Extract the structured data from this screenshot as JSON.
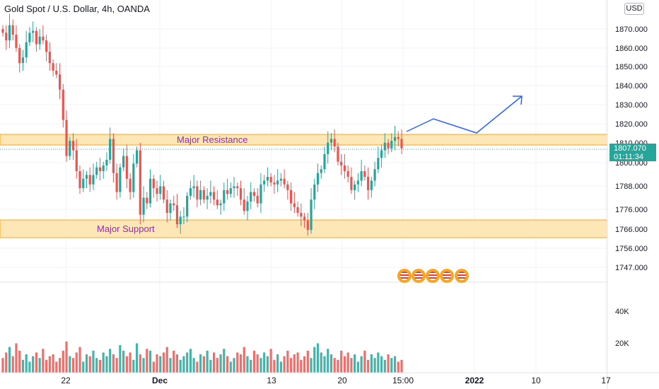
{
  "header": {
    "title": "Gold Spot / U.S. Dollar, 4h, OANDA",
    "currency_button": "USD"
  },
  "price_tag": {
    "price": "1807.070",
    "countdown": "01:11:34"
  },
  "zones": {
    "resistance_label": "Major Resistance",
    "support_label": "Major Support"
  },
  "colors": {
    "up": "#26a69a",
    "down": "#ef5350",
    "volume_up": "#26a69a",
    "volume_down": "#ef5350",
    "zone": "#fbe1a6",
    "label": "#9c27b0",
    "arrow": "#2962ff"
  },
  "chart_data": {
    "type": "candlestick",
    "title": "Gold Spot / U.S. Dollar, 4h, OANDA",
    "ylim": [
      1747,
      1874
    ],
    "yticks": [
      "1870.000",
      "1860.000",
      "1850.000",
      "1840.000",
      "1830.000",
      "1820.000",
      "1810.000",
      "1800.000",
      "1788.000",
      "1776.000",
      "1766.000",
      "1756.000",
      "1747.000"
    ],
    "volume_ticks": [
      "40K",
      "20K"
    ],
    "xticks": [
      "22",
      "Dec",
      "13",
      "20",
      "15:00",
      "2022",
      "10",
      "17"
    ],
    "resistance_zone": [
      1809,
      1815
    ],
    "support_zone": [
      1761,
      1770
    ],
    "current_price": 1807.07,
    "waypoints_price": [
      1815,
      1823,
      1815,
      1836
    ],
    "closes": [
      1868,
      1864,
      1872,
      1867,
      1860,
      1852,
      1855,
      1863,
      1868,
      1869,
      1862,
      1866,
      1864,
      1858,
      1852,
      1848,
      1846,
      1838,
      1822,
      1803,
      1811,
      1806,
      1795,
      1786,
      1791,
      1793,
      1788,
      1793,
      1797,
      1795,
      1798,
      1801,
      1812,
      1794,
      1784,
      1797,
      1803,
      1791,
      1784,
      1799,
      1806,
      1772,
      1781,
      1778,
      1791,
      1786,
      1783,
      1787,
      1780,
      1773,
      1778,
      1777,
      1767,
      1771,
      1771,
      1782,
      1786,
      1787,
      1780,
      1785,
      1780,
      1782,
      1784,
      1780,
      1777,
      1778,
      1785,
      1783,
      1786,
      1787,
      1786,
      1780,
      1774,
      1779,
      1784,
      1782,
      1778,
      1788,
      1790,
      1792,
      1789,
      1788,
      1790,
      1791,
      1788,
      1785,
      1778,
      1776,
      1773,
      1771,
      1769,
      1764,
      1780,
      1788,
      1794,
      1796,
      1804,
      1810,
      1812,
      1808,
      1800,
      1798,
      1795,
      1792,
      1785,
      1788,
      1790,
      1795,
      1792,
      1785,
      1790,
      1796,
      1802,
      1806,
      1810,
      1807,
      1811,
      1813,
      1812,
      1807
    ],
    "volumes": [
      8,
      11,
      14,
      9,
      16,
      12,
      7,
      10,
      6,
      9,
      11,
      8,
      13,
      7,
      9,
      10,
      6,
      8,
      12,
      17,
      9,
      8,
      11,
      14,
      6,
      10,
      9,
      12,
      8,
      7,
      11,
      9,
      13,
      10,
      8,
      15,
      12,
      9,
      11,
      7,
      16,
      10,
      8,
      13,
      12,
      6,
      10,
      9,
      11,
      14,
      8,
      12,
      10,
      7,
      9,
      11,
      13,
      8,
      6,
      10,
      9,
      12,
      7,
      11,
      8,
      10,
      13,
      9,
      6,
      8,
      11,
      10,
      14,
      9,
      7,
      12,
      10,
      8,
      11,
      9,
      13,
      7,
      10,
      6,
      9,
      12,
      8,
      10,
      11,
      7,
      9,
      12,
      8,
      14,
      16,
      11,
      9,
      13,
      10,
      8,
      7,
      12,
      9,
      11,
      8,
      10,
      6,
      9,
      12,
      7,
      10,
      8,
      11,
      9,
      7,
      10,
      8,
      9,
      6,
      7
    ]
  }
}
